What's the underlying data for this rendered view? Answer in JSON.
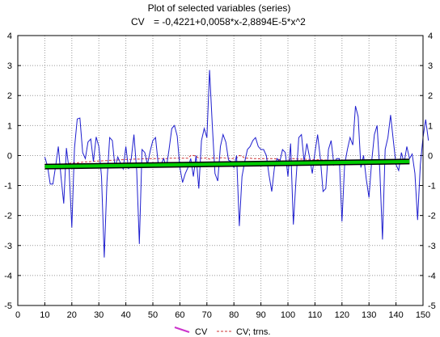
{
  "chart_data": {
    "type": "line",
    "title": "Plot of selected variables (series)",
    "equation_label": "CV",
    "equation": "= -0,4221+0,0058*x-2,8894E-5*x^2",
    "xlim": [
      0,
      150
    ],
    "ylim": [
      -5,
      4
    ],
    "x_ticks": [
      "0",
      "10",
      "20",
      "30",
      "40",
      "50",
      "60",
      "70",
      "80",
      "90",
      "100",
      "110",
      "120",
      "130",
      "140",
      "150"
    ],
    "y_ticks": [
      "4",
      "3",
      "2",
      "1",
      "0",
      "-1",
      "-2",
      "-3",
      "-4",
      "-5"
    ],
    "grid": true,
    "legend_position": "bottom-center",
    "colors": {
      "cv": "#1f1fcf",
      "trns": "#cc3333",
      "fit": "#00cc00",
      "fit_border": "#000000",
      "legend_cv": "#cc33cc"
    },
    "series": [
      {
        "name": "CV",
        "x_start": 10,
        "x_step": 1,
        "values": [
          -0.05,
          -0.35,
          -0.95,
          -0.95,
          -0.35,
          0.3,
          -0.7,
          -1.6,
          0.25,
          -0.5,
          -2.4,
          0.25,
          1.22,
          1.25,
          0.1,
          -0.1,
          0.45,
          0.55,
          -0.2,
          0.62,
          0.3,
          -0.7,
          -3.4,
          -0.9,
          0.6,
          0.5,
          -0.4,
          -0.05,
          -0.25,
          -0.45,
          0.3,
          -0.45,
          -0.1,
          0.7,
          -0.5,
          -2.95,
          0.2,
          0.1,
          -0.3,
          0.15,
          0.5,
          0.6,
          -0.3,
          -0.3,
          -0.1,
          -0.4,
          0.2,
          0.9,
          1.0,
          0.65,
          -0.4,
          -0.9,
          -0.6,
          -0.4,
          -0.1,
          -0.7,
          0.0,
          -1.1,
          0.5,
          0.9,
          0.6,
          2.85,
          1.0,
          -0.6,
          -0.85,
          0.3,
          0.7,
          0.45,
          -0.15,
          -0.2,
          -0.4,
          0.0,
          -2.35,
          -0.7,
          -0.2,
          0.2,
          0.3,
          0.5,
          0.6,
          0.3,
          0.2,
          0.2,
          0.0,
          -0.65,
          -1.2,
          -0.4,
          -0.1,
          -0.2,
          0.2,
          0.1,
          -0.7,
          0.4,
          -2.3,
          -0.8,
          0.6,
          0.7,
          -0.2,
          0.4,
          -0.05,
          -0.6,
          0.1,
          0.7,
          -0.1,
          -1.2,
          -1.1,
          0.2,
          0.5,
          -0.3,
          -0.1,
          -0.1,
          -2.2,
          -0.3,
          0.2,
          0.6,
          0.35,
          1.65,
          1.3,
          -0.4,
          0.0,
          -0.8,
          -1.4,
          -0.2,
          0.7,
          1.0,
          -0.5,
          -2.8,
          0.2,
          0.6,
          1.35,
          0.5,
          -0.3,
          -0.5,
          0.1,
          -0.25,
          0.3,
          -0.1,
          0.05,
          -0.6,
          -2.15,
          -0.3,
          0.6,
          1.2,
          0.5
        ]
      },
      {
        "name": "CV; trns.",
        "x_start": 10,
        "x_step": 1,
        "values": [
          -0.38,
          -0.36,
          -0.34,
          -0.32,
          -0.31,
          -0.3,
          -0.29,
          -0.28,
          -0.27,
          -0.26,
          -0.25,
          -0.24,
          -0.24,
          -0.23,
          -0.22,
          -0.21,
          -0.21,
          -0.2,
          -0.19,
          -0.19,
          -0.18,
          -0.18,
          -0.17,
          -0.17,
          -0.16,
          -0.16,
          -0.15,
          -0.15,
          -0.14,
          -0.14,
          -0.13,
          -0.13,
          -0.13,
          -0.12,
          -0.12,
          -0.12,
          -0.11,
          -0.11,
          -0.11,
          -0.1,
          -0.1,
          -0.1,
          -0.1,
          -0.1,
          -0.1,
          -0.1,
          -0.09,
          -0.09,
          -0.09,
          -0.09,
          -0.09,
          -0.09,
          -0.09,
          -0.09,
          0.0,
          0.0,
          -0.02,
          -0.09,
          -0.09,
          -0.09,
          -0.08,
          -0.12,
          -0.08,
          -0.09,
          -0.09,
          -0.08,
          -0.07,
          -0.09,
          -0.09,
          -0.11,
          -0.09,
          -0.09,
          0.0,
          -0.02,
          -0.09,
          -0.09,
          -0.09,
          -0.1,
          -0.1,
          -0.11,
          -0.1,
          -0.1,
          -0.1,
          -0.1,
          -0.1,
          -0.1,
          -0.12,
          -0.14,
          -0.2,
          -0.2,
          -0.2,
          -0.1,
          -0.1,
          -0.11,
          -0.12,
          -0.12,
          -0.12,
          -0.13,
          -0.13,
          -0.13,
          -0.14,
          -0.14,
          -0.14,
          -0.15,
          -0.15,
          -0.16,
          -0.16,
          -0.16,
          -0.17,
          -0.17,
          -0.17,
          -0.18,
          -0.18,
          -0.19,
          -0.19,
          -0.19,
          -0.2,
          -0.2,
          -0.2,
          -0.21,
          -0.21,
          -0.21,
          -0.22,
          -0.22,
          -0.22,
          -0.22,
          -0.22,
          -0.22,
          -0.22,
          -0.22,
          -0.22,
          -0.22,
          -0.22,
          -0.22,
          -0.22
        ]
      }
    ],
    "trend": {
      "x": [
        10,
        145
      ],
      "y": [
        -0.37,
        -0.2
      ]
    }
  }
}
